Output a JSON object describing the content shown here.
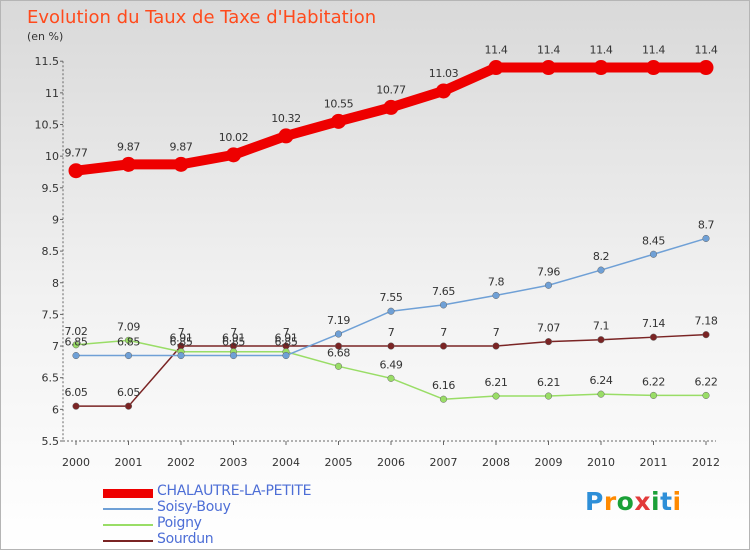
{
  "title": "Evolution du Taux de Taxe d'Habitation",
  "subtitle": "(en %)",
  "logo": "Proxiti",
  "chart_data": {
    "type": "line",
    "title": "Evolution du Taux de Taxe d'Habitation",
    "ylabel": "(en %)",
    "xlabel": "",
    "x": [
      "2000",
      "2001",
      "2002",
      "2003",
      "2004",
      "2005",
      "2006",
      "2007",
      "2008",
      "2009",
      "2010",
      "2011",
      "2012"
    ],
    "ylim": [
      5.5,
      11.5
    ],
    "yticks": [
      "5.5",
      "6",
      "6.5",
      "7",
      "7.5",
      "8",
      "8.5",
      "9",
      "9.5",
      "10",
      "10.5",
      "11",
      "11.5"
    ],
    "grid": false,
    "legend_position": "bottom-left",
    "series": [
      {
        "name": "CHALAUTRE-LA-PETITE",
        "color": "#ee0000",
        "values": [
          9.77,
          9.87,
          9.87,
          10.02,
          10.32,
          10.55,
          10.77,
          11.03,
          11.4,
          11.4,
          11.4,
          11.4,
          11.4
        ],
        "labels": [
          "9.77",
          "9.87",
          "9.87",
          "10.02",
          "10.32",
          "10.55",
          "10.77",
          "11.03",
          "11.4",
          "11.4",
          "11.4",
          "11.4",
          "11.4"
        ]
      },
      {
        "name": "Soisy-Bouy",
        "color": "#6fa0d6",
        "values": [
          6.85,
          6.85,
          6.85,
          6.85,
          6.85,
          7.19,
          7.55,
          7.65,
          7.8,
          7.96,
          8.2,
          8.45,
          8.7
        ],
        "labels": [
          "6.85",
          "6.85",
          "6.85",
          "6.85",
          "6.85",
          "7.19",
          "7.55",
          "7.65",
          "7.8",
          "7.96",
          "8.2",
          "8.45",
          "8.7"
        ]
      },
      {
        "name": "Poigny",
        "color": "#99dd66",
        "values": [
          7.02,
          7.09,
          6.91,
          6.91,
          6.91,
          6.68,
          6.49,
          6.16,
          6.21,
          6.21,
          6.24,
          6.22,
          6.22
        ],
        "labels": [
          "7.02",
          "7.09",
          "6.91",
          "6.91",
          "6.91",
          "6.68",
          "6.49",
          "6.16",
          "6.21",
          "6.21",
          "6.24",
          "6.22",
          "6.22"
        ]
      },
      {
        "name": "Sourdun",
        "color": "#7a2424",
        "values": [
          6.05,
          6.05,
          7,
          7,
          7,
          7,
          7,
          7,
          7,
          7.07,
          7.1,
          7.14,
          7.18
        ],
        "labels": [
          "6.05",
          "6.05",
          "7",
          "7",
          "7",
          "",
          "7",
          "7",
          "7",
          "7.07",
          "7.1",
          "7.14",
          "7.18"
        ]
      }
    ]
  }
}
